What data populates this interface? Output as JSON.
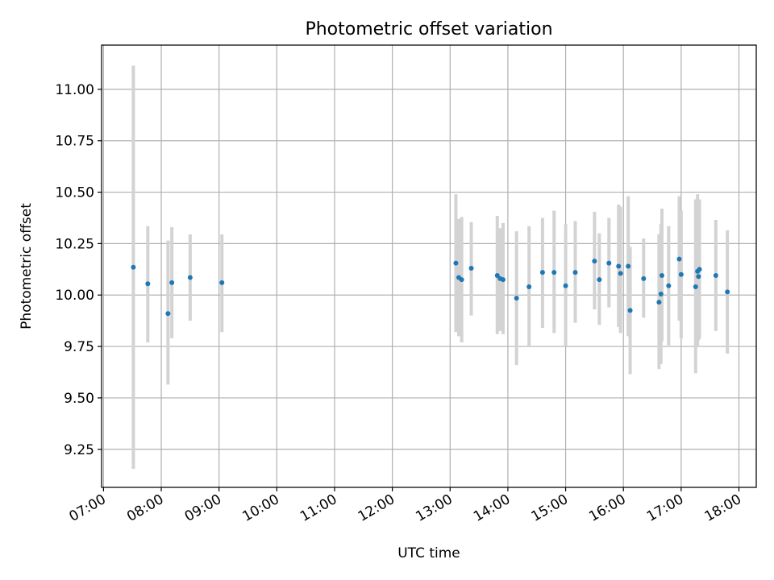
{
  "chart_data": {
    "type": "scatter",
    "title": "Photometric offset variation",
    "xlabel": "UTC time",
    "ylabel": "Photometric offset",
    "xlim": [
      "06:58",
      "18:18"
    ],
    "ylim": [
      9.065,
      11.215
    ],
    "x_ticks": [
      "07:00",
      "08:00",
      "09:00",
      "10:00",
      "11:00",
      "12:00",
      "13:00",
      "14:00",
      "15:00",
      "16:00",
      "17:00",
      "18:00"
    ],
    "y_ticks": [
      9.25,
      9.5,
      9.75,
      10.0,
      10.25,
      10.5,
      10.75,
      11.0
    ],
    "y_tick_labels": [
      "9.25",
      "9.50",
      "9.75",
      "10.00",
      "10.25",
      "10.50",
      "10.75",
      "11.00"
    ],
    "grid": true,
    "marker_color": "#1f77b4",
    "errorbar_color": "#d3d3d3",
    "points": [
      {
        "time": "07:31",
        "y": 10.135,
        "lo": 9.155,
        "hi": 11.115
      },
      {
        "time": "07:46",
        "y": 10.055,
        "lo": 9.77,
        "hi": 10.335
      },
      {
        "time": "08:07",
        "y": 9.91,
        "lo": 9.565,
        "hi": 10.265
      },
      {
        "time": "08:11",
        "y": 10.06,
        "lo": 9.79,
        "hi": 10.33
      },
      {
        "time": "08:30",
        "y": 10.085,
        "lo": 9.875,
        "hi": 10.295
      },
      {
        "time": "09:03",
        "y": 10.06,
        "lo": 9.82,
        "hi": 10.295
      },
      {
        "time": "13:06",
        "y": 10.155,
        "lo": 9.82,
        "hi": 10.49
      },
      {
        "time": "13:09",
        "y": 10.085,
        "lo": 9.8,
        "hi": 10.37
      },
      {
        "time": "13:12",
        "y": 10.075,
        "lo": 9.77,
        "hi": 10.38
      },
      {
        "time": "13:22",
        "y": 10.13,
        "lo": 9.9,
        "hi": 10.355
      },
      {
        "time": "13:49",
        "y": 10.095,
        "lo": 9.81,
        "hi": 10.385
      },
      {
        "time": "13:52",
        "y": 10.08,
        "lo": 9.825,
        "hi": 10.325
      },
      {
        "time": "13:55",
        "y": 10.075,
        "lo": 9.81,
        "hi": 10.35
      },
      {
        "time": "14:09",
        "y": 9.985,
        "lo": 9.66,
        "hi": 10.31
      },
      {
        "time": "14:22",
        "y": 10.04,
        "lo": 9.75,
        "hi": 10.335
      },
      {
        "time": "14:36",
        "y": 10.11,
        "lo": 9.84,
        "hi": 10.375
      },
      {
        "time": "14:48",
        "y": 10.11,
        "lo": 9.815,
        "hi": 10.41
      },
      {
        "time": "15:00",
        "y": 10.045,
        "lo": 9.75,
        "hi": 10.345
      },
      {
        "time": "15:10",
        "y": 10.11,
        "lo": 9.865,
        "hi": 10.36
      },
      {
        "time": "15:30",
        "y": 10.165,
        "lo": 9.93,
        "hi": 10.405
      },
      {
        "time": "15:35",
        "y": 10.075,
        "lo": 9.855,
        "hi": 10.3
      },
      {
        "time": "15:45",
        "y": 10.155,
        "lo": 9.94,
        "hi": 10.375
      },
      {
        "time": "15:55",
        "y": 10.14,
        "lo": 9.845,
        "hi": 10.44
      },
      {
        "time": "15:57",
        "y": 10.105,
        "lo": 9.815,
        "hi": 10.43
      },
      {
        "time": "16:05",
        "y": 10.14,
        "lo": 9.8,
        "hi": 10.48
      },
      {
        "time": "16:07",
        "y": 9.925,
        "lo": 9.615,
        "hi": 10.235
      },
      {
        "time": "16:21",
        "y": 10.08,
        "lo": 9.89,
        "hi": 10.275
      },
      {
        "time": "16:37",
        "y": 9.965,
        "lo": 9.64,
        "hi": 10.295
      },
      {
        "time": "16:39",
        "y": 10.005,
        "lo": 9.665,
        "hi": 10.345
      },
      {
        "time": "16:40",
        "y": 10.095,
        "lo": 9.775,
        "hi": 10.42
      },
      {
        "time": "16:47",
        "y": 10.045,
        "lo": 9.755,
        "hi": 10.335
      },
      {
        "time": "16:58",
        "y": 10.175,
        "lo": 9.875,
        "hi": 10.48
      },
      {
        "time": "17:00",
        "y": 10.1,
        "lo": 9.79,
        "hi": 10.41
      },
      {
        "time": "17:15",
        "y": 10.04,
        "lo": 9.62,
        "hi": 10.465
      },
      {
        "time": "17:17",
        "y": 10.115,
        "lo": 9.75,
        "hi": 10.49
      },
      {
        "time": "17:18",
        "y": 10.09,
        "lo": 9.78,
        "hi": 10.4
      },
      {
        "time": "17:19",
        "y": 10.125,
        "lo": 9.79,
        "hi": 10.465
      },
      {
        "time": "17:36",
        "y": 10.095,
        "lo": 9.825,
        "hi": 10.365
      },
      {
        "time": "17:48",
        "y": 10.015,
        "lo": 9.715,
        "hi": 10.315
      }
    ]
  }
}
